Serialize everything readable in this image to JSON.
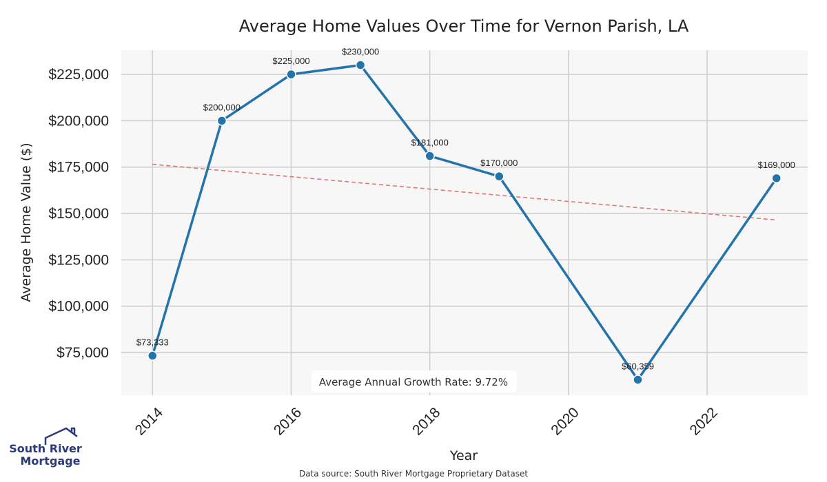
{
  "chart_data": {
    "type": "line",
    "title": "Average Home Values Over Time for Vernon Parish, LA",
    "xlabel": "Year",
    "ylabel": "Average Home Value ($)",
    "x": [
      2014,
      2015,
      2016,
      2017,
      2018,
      2019,
      2021,
      2023
    ],
    "values": [
      73333,
      200000,
      225000,
      230000,
      181000,
      170000,
      60359,
      169000
    ],
    "point_labels": [
      "$73,333",
      "$200,000",
      "$225,000",
      "$230,000",
      "$181,000",
      "$170,000",
      "$60,359",
      "$169,000"
    ],
    "trendline": {
      "x": [
        2014,
        2023
      ],
      "y": [
        176500,
        146500
      ]
    },
    "x_ticks": [
      2014,
      2016,
      2018,
      2020,
      2022
    ],
    "y_ticks": [
      75000,
      100000,
      125000,
      150000,
      175000,
      200000,
      225000
    ],
    "y_tick_labels": [
      "$75,000",
      "$100,000",
      "$125,000",
      "$150,000",
      "$175,000",
      "$200,000",
      "$225,000"
    ],
    "xlim": [
      2013.55,
      2023.45
    ],
    "ylim": [
      52000,
      238000
    ],
    "grid": true,
    "annotation": "Average Annual Growth Rate: 9.72%",
    "line_color": "#2374ab",
    "trend_color": "#d9777a",
    "plot_bg": "#f7f7f7",
    "grid_color": "#cfcfcf"
  },
  "logo": {
    "line1": "South River",
    "line2": "Mortgage",
    "color": "#2b3a7a"
  },
  "source": "Data source: South River Mortgage Proprietary Dataset"
}
